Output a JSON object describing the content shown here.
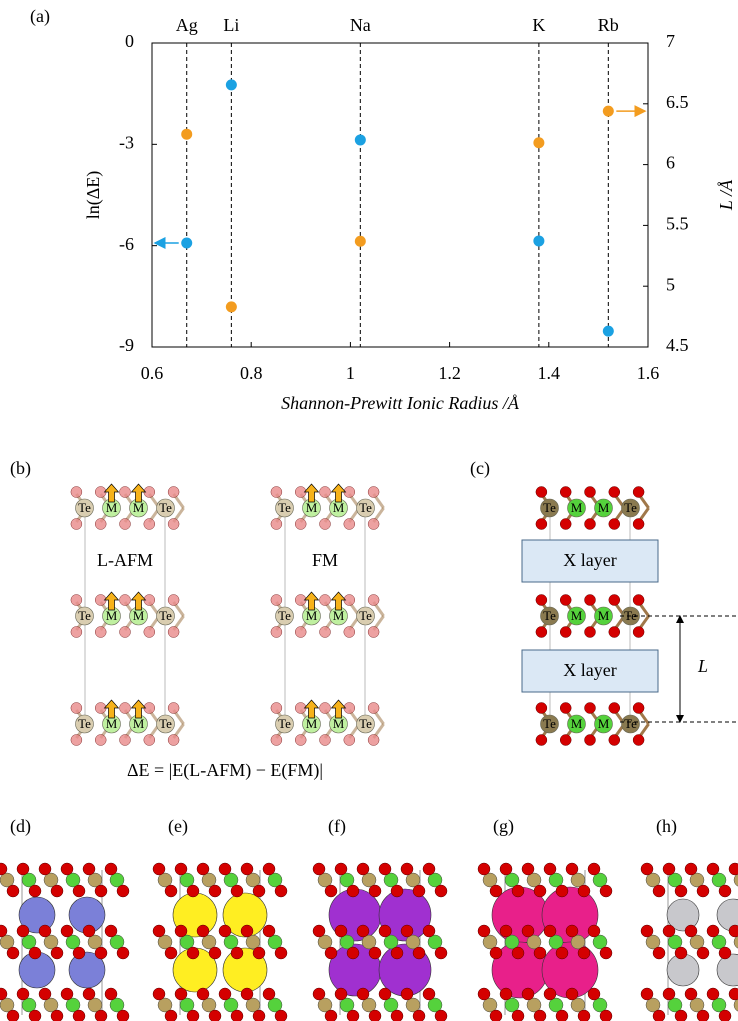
{
  "chart_data": {
    "type": "scatter",
    "panel_label": "(a)",
    "x": [
      0.67,
      0.76,
      1.02,
      1.38,
      1.52
    ],
    "categories": [
      "Ag",
      "Li",
      "Na",
      "K",
      "Rb"
    ],
    "series": [
      {
        "color": "#1ba1e2",
        "values": [
          -5.92,
          -1.24,
          -2.87,
          -5.86,
          -8.53
        ]
      },
      {
        "color": "#f39c1f",
        "axis": "y2",
        "values": [
          6.25,
          4.83,
          5.37,
          6.18,
          6.44
        ]
      }
    ],
    "xlim": [
      0.6,
      1.6
    ],
    "xticks": [
      0.6,
      0.8,
      1,
      1.2,
      1.4,
      1.6
    ],
    "ylim": [
      -9,
      0
    ],
    "yticks": [
      0,
      -3,
      -6,
      -9
    ],
    "y2lim": [
      4.5,
      7
    ],
    "y2ticks": [
      4.5,
      5,
      5.5,
      6,
      6.5,
      7
    ],
    "xlabel": "Shannon-Prewitt Ionic Radius /Å",
    "ylabel": "ln(ΔE)",
    "y2label": "L /Å"
  },
  "panels": {
    "b": {
      "label": "(b)",
      "atoms": [
        "Te",
        "M",
        "M",
        "Te"
      ],
      "states": [
        "L-AFM",
        "FM"
      ],
      "formula": "ΔE = |E(L-AFM)  − E(FM)|"
    },
    "c": {
      "label": "(c)",
      "atoms": [
        "Te",
        "M",
        "M",
        "Te"
      ],
      "layer": "X layer",
      "length": "L"
    },
    "structures": [
      "(d)",
      "(e)",
      "(f)",
      "(g)",
      "(h)"
    ]
  }
}
